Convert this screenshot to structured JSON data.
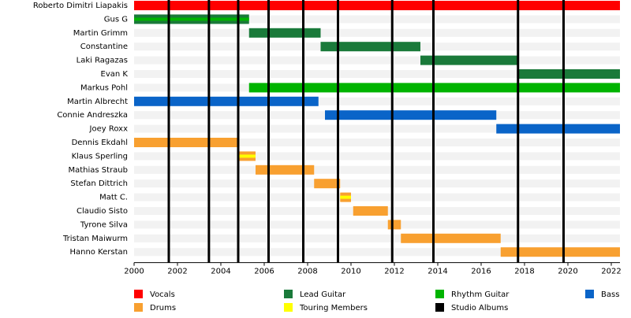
{
  "chart_data": {
    "type": "timeline",
    "xlim": [
      2000,
      2022.4
    ],
    "xticks": [
      2000,
      2002,
      2004,
      2006,
      2008,
      2010,
      2012,
      2014,
      2016,
      2018,
      2020,
      2022
    ],
    "roles": [
      {
        "name": "Vocals",
        "color": "#ff0000"
      },
      {
        "name": "Lead Guitar",
        "color": "#1a7a3a"
      },
      {
        "name": "Rhythm Guitar",
        "color": "#00b400"
      },
      {
        "name": "Bass",
        "color": "#0a64c8"
      },
      {
        "name": "Drums",
        "color": "#f8a030"
      },
      {
        "name": "Touring Members",
        "color": "#ffff00"
      }
    ],
    "albums": {
      "name": "Studio Albums",
      "color": "#000000",
      "x": [
        2001.6,
        2003.45,
        2004.8,
        2006.2,
        2007.8,
        2009.4,
        2011.9,
        2013.8,
        2017.7,
        2019.8
      ]
    },
    "members": [
      {
        "name": "Roberto Dimitri Liapakis",
        "spans": [
          {
            "role": "Vocals",
            "start": 2000,
            "end": 2022.4
          }
        ]
      },
      {
        "name": "Gus G",
        "spans": [
          {
            "role": "Lead Guitar",
            "start": 2000,
            "end": 2005.3
          },
          {
            "role": "Rhythm Guitar",
            "start": 2000,
            "end": 2005.3
          }
        ]
      },
      {
        "name": "Martin Grimm",
        "spans": [
          {
            "role": "Lead Guitar",
            "start": 2005.3,
            "end": 2008.6
          }
        ]
      },
      {
        "name": "Constantine",
        "spans": [
          {
            "role": "Lead Guitar",
            "start": 2008.6,
            "end": 2013.2
          }
        ]
      },
      {
        "name": "Laki Ragazas",
        "spans": [
          {
            "role": "Lead Guitar",
            "start": 2013.2,
            "end": 2017.7
          }
        ]
      },
      {
        "name": "Evan K",
        "spans": [
          {
            "role": "Lead Guitar",
            "start": 2017.7,
            "end": 2022.4
          }
        ]
      },
      {
        "name": "Markus Pohl",
        "spans": [
          {
            "role": "Rhythm Guitar",
            "start": 2005.3,
            "end": 2022.4
          }
        ]
      },
      {
        "name": "Martin Albrecht",
        "spans": [
          {
            "role": "Bass",
            "start": 2000,
            "end": 2008.5
          }
        ]
      },
      {
        "name": "Connie Andreszka",
        "spans": [
          {
            "role": "Bass",
            "start": 2008.8,
            "end": 2016.7
          }
        ]
      },
      {
        "name": "Joey Roxx",
        "spans": [
          {
            "role": "Bass",
            "start": 2016.7,
            "end": 2022.4
          }
        ]
      },
      {
        "name": "Dennis Ekdahl",
        "spans": [
          {
            "role": "Drums",
            "start": 2000,
            "end": 2004.8
          }
        ]
      },
      {
        "name": "Klaus Sperling",
        "spans": [
          {
            "role": "Drums",
            "start": 2004.8,
            "end": 2005.6
          },
          {
            "role": "Touring Members",
            "start": 2004.8,
            "end": 2005.6
          }
        ]
      },
      {
        "name": "Mathias Straub",
        "spans": [
          {
            "role": "Drums",
            "start": 2005.6,
            "end": 2008.3
          }
        ]
      },
      {
        "name": "Stefan Dittrich",
        "spans": [
          {
            "role": "Drums",
            "start": 2008.3,
            "end": 2009.5
          }
        ]
      },
      {
        "name": "Matt C.",
        "spans": [
          {
            "role": "Drums",
            "start": 2009.5,
            "end": 2010.0
          },
          {
            "role": "Touring Members",
            "start": 2009.5,
            "end": 2010.0
          }
        ]
      },
      {
        "name": "Claudio Sisto",
        "spans": [
          {
            "role": "Drums",
            "start": 2010.1,
            "end": 2011.7
          }
        ]
      },
      {
        "name": "Tyrone Silva",
        "spans": [
          {
            "role": "Drums",
            "start": 2011.7,
            "end": 2012.3
          }
        ]
      },
      {
        "name": "Tristan Maiwurm",
        "spans": [
          {
            "role": "Drums",
            "start": 2012.3,
            "end": 2016.9
          }
        ]
      },
      {
        "name": "Hanno Kerstan",
        "spans": [
          {
            "role": "Drums",
            "start": 2016.9,
            "end": 2022.4
          }
        ]
      }
    ]
  }
}
